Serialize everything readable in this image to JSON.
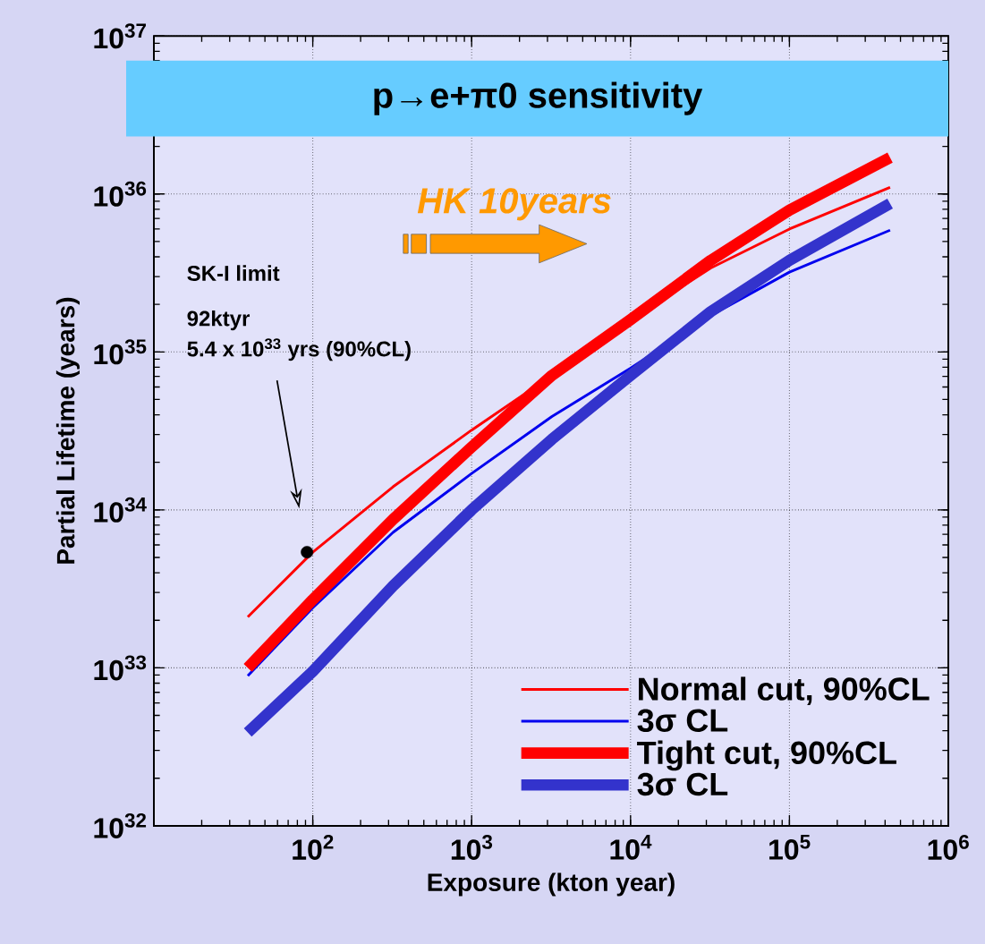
{
  "chart_data": {
    "type": "line",
    "title": "p→e+π0 sensitivity",
    "xlabel": "Exposure (kton year)",
    "ylabel": "Partial Lifetime (years)",
    "log": "xy",
    "grid": true,
    "legend": "bottom right",
    "xlim": [
      10,
      1000000
    ],
    "ylim": [
      1e+32,
      1e+37
    ],
    "xticks": [
      {
        "value": 10,
        "label": null
      },
      {
        "value": 100,
        "label": "10$^{2}$"
      },
      {
        "value": 1000,
        "label": "10$^{3}$"
      },
      {
        "value": 10000,
        "label": "10$^{4}$"
      },
      {
        "value": 100000,
        "label": "10$^{5}$"
      },
      {
        "value": 1000000,
        "label": "10$^{6}$"
      }
    ],
    "yticks": [
      {
        "value": 1e+32,
        "label": "10$^{32}$"
      },
      {
        "value": 1e+33,
        "label": "10$^{33}$"
      },
      {
        "value": 1e+34,
        "label": "10$^{34}$"
      },
      {
        "value": 1e+35,
        "label": "10$^{35}$"
      },
      {
        "value": 1e+36,
        "label": "10$^{36}$"
      },
      {
        "value": 1e+37,
        "label": "10$^{37}$"
      }
    ],
    "x": [
      39,
      100,
      320,
      1000,
      3200,
      10000,
      32000,
      100000,
      430000
    ],
    "series": [
      {
        "name": "Normal cut, 90%CL",
        "color": "#ff0000",
        "values": [
          2.1e+33,
          5.4e+33,
          1.4e+34,
          3.2e+34,
          7.1e+34,
          1.6e+35,
          3.4e+35,
          6e+35,
          1.1e+36
        ]
      },
      {
        "name": "3σ CL",
        "color": "#0000ee",
        "values": [
          8.9e+32,
          2.4e+33,
          7.2e+33,
          1.7e+34,
          3.9e+34,
          7.9e+34,
          1.7e+35,
          3.2e+35,
          5.9e+35
        ]
      },
      {
        "name": "Tight cut, 90%CL",
        "color": "#ff0000",
        "values": [
          1e+33,
          2.7e+33,
          8.7e+33,
          2.5e+34,
          7.1e+34,
          1.6e+35,
          3.8e+35,
          7.9e+35,
          1.7e+36
        ]
      },
      {
        "name": "3σ CL",
        "color": "#3333cc",
        "values": [
          3.9e+32,
          9.5e+32,
          3.3e+33,
          1e+34,
          2.8e+34,
          7.1e+34,
          1.8e+35,
          3.8e+35,
          8.7e+35
        ]
      },
      {
        "type": "scatter",
        "color": "#000000",
        "marker": "circle",
        "x": [
          92
        ],
        "values": [
          5.4e+33
        ]
      }
    ],
    "annotations": [
      "HK 10years",
      "SK-I limit",
      "92ktyr",
      "5.4 x 10$^{33}$ yrs (90%CL)"
    ]
  }
}
